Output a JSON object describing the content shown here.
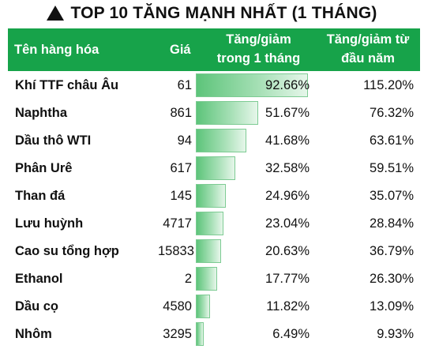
{
  "title": "TOP 10 TĂNG MẠNH NHẤT (1 THÁNG)",
  "header": {
    "name": "Tên hàng hóa",
    "price": "Giá",
    "change_line1": "Tăng/giảm",
    "change_line2": "trong 1 tháng",
    "ytd_line1": "Tăng/giảm từ",
    "ytd_line2": "đầu năm"
  },
  "colors": {
    "header_bg": "#17a34a",
    "bar": "#5dc47a"
  },
  "rows": [
    {
      "name": "Khí TTF châu Âu",
      "price": "61",
      "change": "92.66%",
      "change_value": 92.66,
      "ytd": "115.20%"
    },
    {
      "name": "Naphtha",
      "price": "861",
      "change": "51.67%",
      "change_value": 51.67,
      "ytd": "76.32%"
    },
    {
      "name": "Dầu thô WTI",
      "price": "94",
      "change": "41.68%",
      "change_value": 41.68,
      "ytd": "63.61%"
    },
    {
      "name": "Phân Urê",
      "price": "617",
      "change": "32.58%",
      "change_value": 32.58,
      "ytd": "59.51%"
    },
    {
      "name": "Than đá",
      "price": "145",
      "change": "24.96%",
      "change_value": 24.96,
      "ytd": "35.07%"
    },
    {
      "name": "Lưu huỳnh",
      "price": "4717",
      "change": "23.04%",
      "change_value": 23.04,
      "ytd": "28.84%"
    },
    {
      "name": "Cao su tổng hợp",
      "price": "15833",
      "change": "20.63%",
      "change_value": 20.63,
      "ytd": "36.79%"
    },
    {
      "name": "Ethanol",
      "price": "2",
      "change": "17.77%",
      "change_value": 17.77,
      "ytd": "26.30%"
    },
    {
      "name": "Dầu cọ",
      "price": "4580",
      "change": "11.82%",
      "change_value": 11.82,
      "ytd": "13.09%"
    },
    {
      "name": "Nhôm",
      "price": "3295",
      "change": "6.49%",
      "change_value": 6.49,
      "ytd": "9.93%"
    }
  ]
}
